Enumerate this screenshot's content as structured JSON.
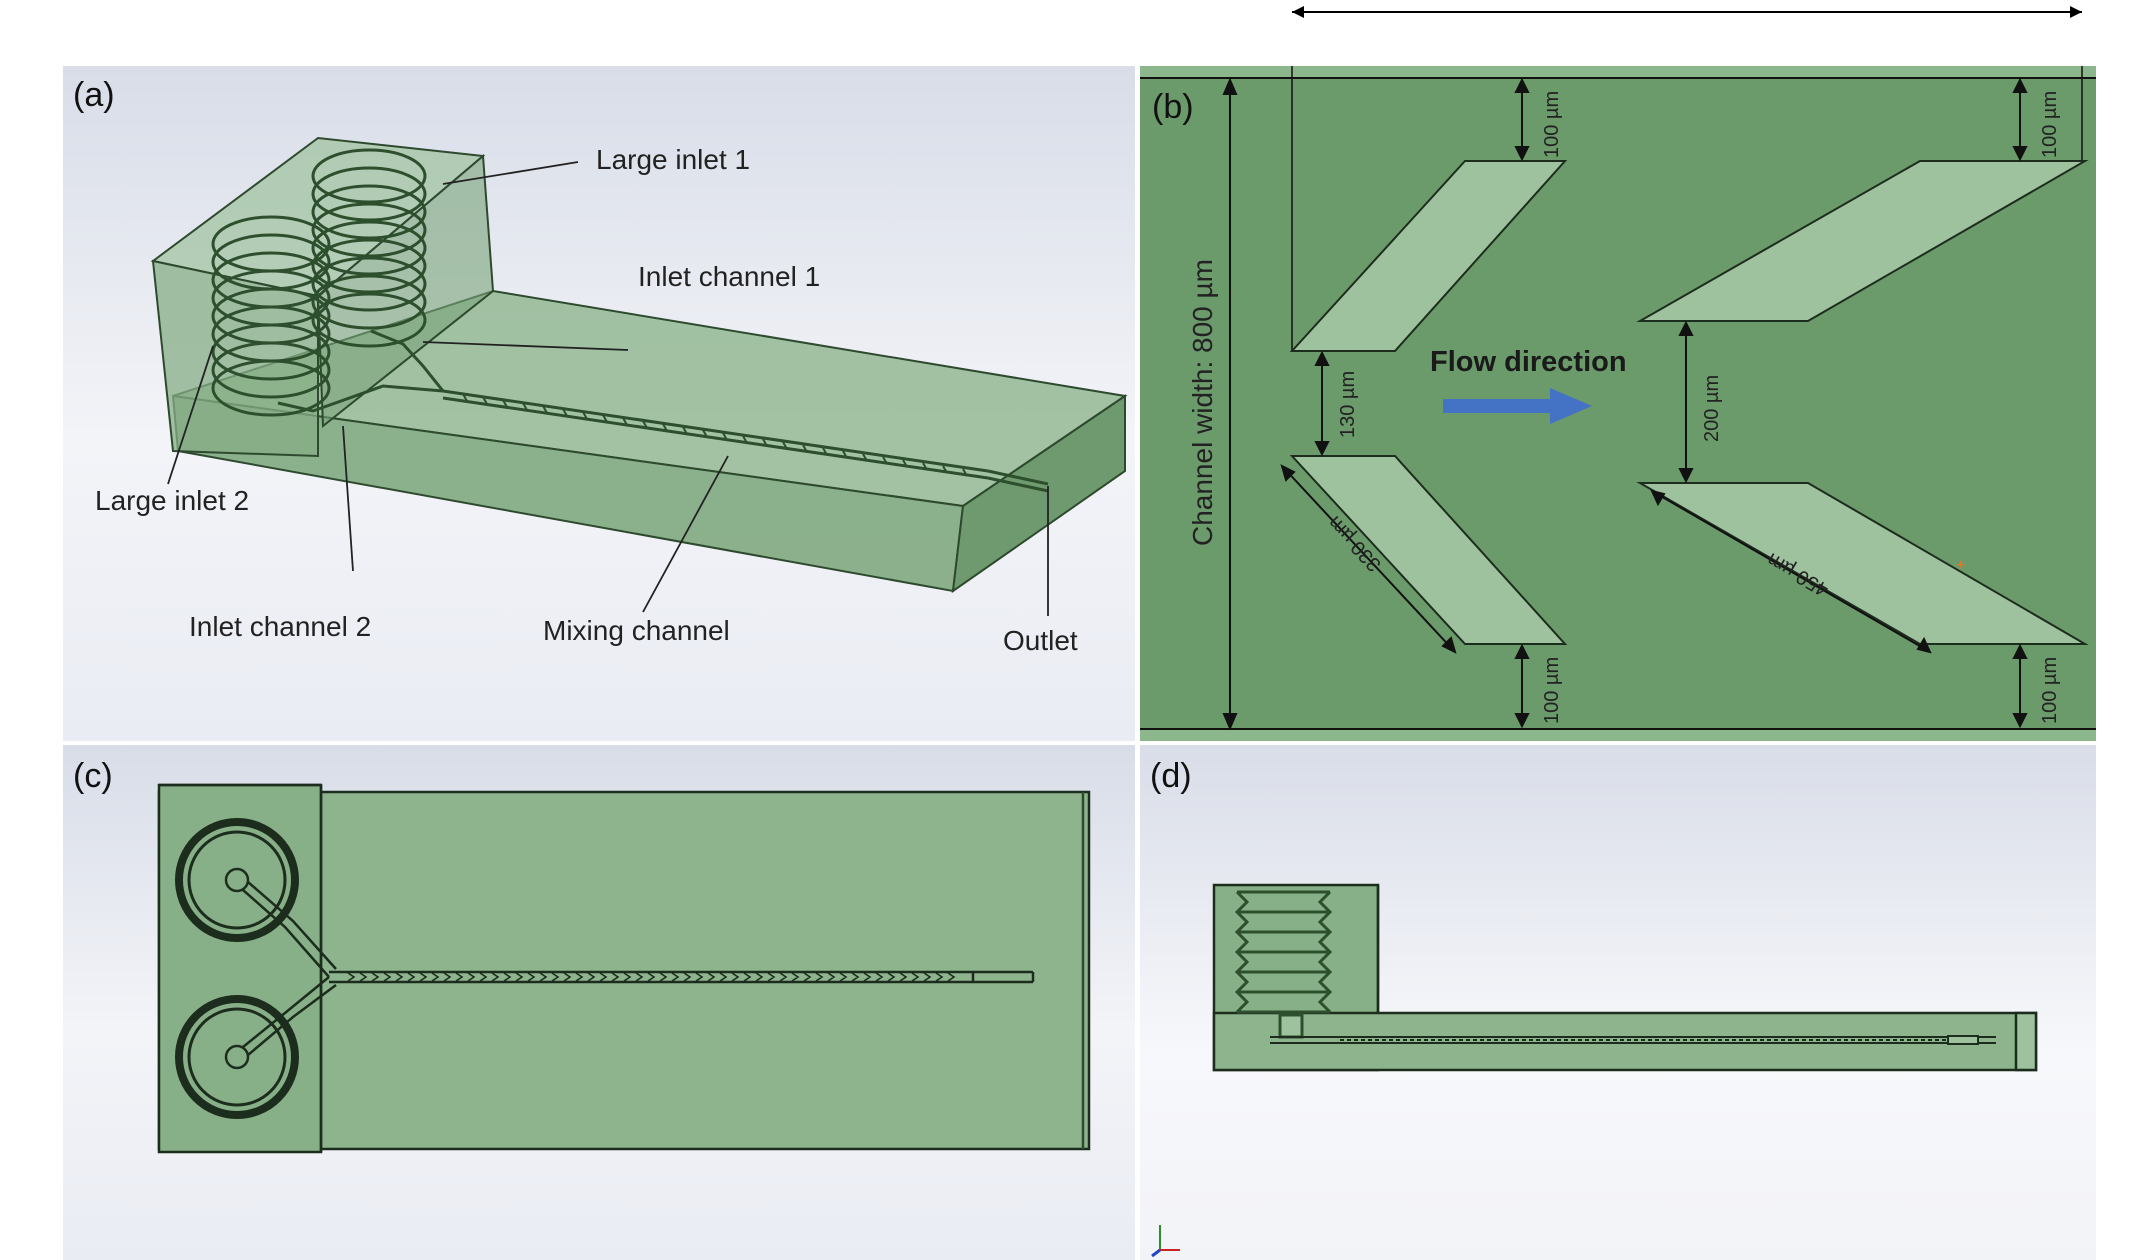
{
  "panels": {
    "a": {
      "label": "(a)",
      "annotations": {
        "large_inlet_1": "Large inlet 1",
        "inlet_channel_1": "Inlet channel 1",
        "large_inlet_2": "Large inlet 2",
        "inlet_channel_2": "Inlet channel 2",
        "mixing_channel": "Mixing channel",
        "outlet": "Outlet"
      }
    },
    "b": {
      "label": "(b)",
      "channel_width": "Channel width: 800 µm",
      "flow_direction": "Flow direction",
      "dims": {
        "top_left": "100 µm",
        "top_right": "100 µm",
        "bottom_left": "100 µm",
        "bottom_right": "100 µm",
        "gap_left": "130 µm",
        "gap_right": "200 µm",
        "len_left": "330 µm",
        "len_right": "450 µm"
      }
    },
    "c": {
      "label": "(c)"
    },
    "d": {
      "label": "(d)"
    }
  },
  "colors": {
    "device_green": "#8fb58f",
    "dark_green": "#3f6b3f",
    "field_green": "#6b9a6b",
    "groove_green": "#9ec29e",
    "arrow_blue": "#4472c4"
  }
}
